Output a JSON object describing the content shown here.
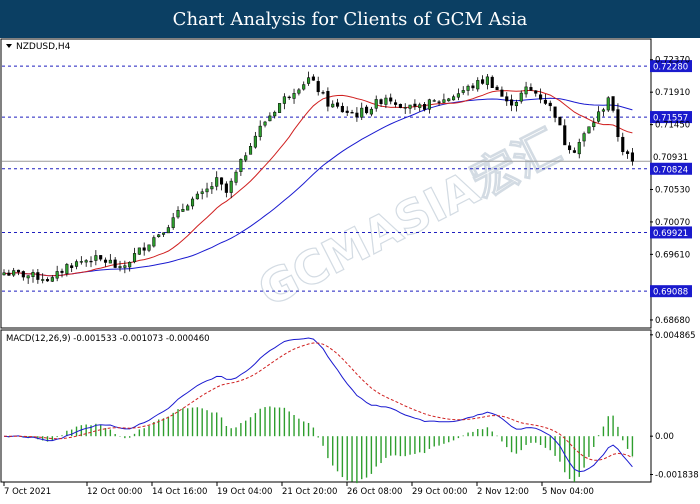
{
  "header": {
    "title": "Chart Analysis for Clients of GCM Asia"
  },
  "chart_data": {
    "type": "candlestick",
    "symbol": "NZDUSD,H4",
    "watermark": "GCMASIA宏汇",
    "price_axis": {
      "range": [
        0.6858,
        0.7265
      ],
      "tick_labels": [
        "0.72370",
        "0.71910",
        "0.71450",
        "0.70530",
        "0.70070",
        "0.69610",
        "0.68680"
      ],
      "ticks": [
        0.7237,
        0.7191,
        0.7145,
        0.7053,
        0.7007,
        0.6961,
        0.6868
      ]
    },
    "levels": [
      {
        "value": 0.7228,
        "label": "0.72280",
        "style": "dashed",
        "color": "#1f1fbf"
      },
      {
        "value": 0.71557,
        "label": "0.71557",
        "style": "dashed",
        "color": "#1f1fbf"
      },
      {
        "value": 0.70824,
        "label": "0.70824",
        "style": "dashed",
        "color": "#1f1fbf"
      },
      {
        "value": 0.69921,
        "label": "0.69921",
        "style": "dashed",
        "color": "#1f1fbf"
      },
      {
        "value": 0.69088,
        "label": "0.69088",
        "style": "dashed",
        "color": "#1f1fbf"
      }
    ],
    "current_price": {
      "value": 0.70931,
      "label": "0.70931"
    },
    "time_labels": [
      "7 Oct 2021",
      "12 Oct 00:00",
      "14 Oct 16:00",
      "19 Oct 04:00",
      "21 Oct 20:00",
      "26 Oct 08:00",
      "29 Oct 00:00",
      "2 Nov 12:00",
      "5 Nov 04:00"
    ],
    "close_path": [
      [
        0,
        0.6935
      ],
      [
        4,
        0.6932
      ],
      [
        8,
        0.6928
      ],
      [
        10,
        0.6925
      ],
      [
        13,
        0.6945
      ],
      [
        18,
        0.6955
      ],
      [
        22,
        0.695
      ],
      [
        24,
        0.6938
      ],
      [
        27,
        0.696
      ],
      [
        31,
        0.6985
      ],
      [
        35,
        0.701
      ],
      [
        38,
        0.7035
      ],
      [
        41,
        0.7045
      ],
      [
        44,
        0.7065
      ],
      [
        46,
        0.7048
      ],
      [
        48,
        0.7075
      ],
      [
        51,
        0.712
      ],
      [
        54,
        0.715
      ],
      [
        57,
        0.7175
      ],
      [
        60,
        0.7195
      ],
      [
        63,
        0.721
      ],
      [
        65,
        0.7195
      ],
      [
        67,
        0.7175
      ],
      [
        70,
        0.7165
      ],
      [
        73,
        0.716
      ],
      [
        76,
        0.717
      ],
      [
        79,
        0.7185
      ],
      [
        82,
        0.7175
      ],
      [
        85,
        0.7165
      ],
      [
        88,
        0.7175
      ],
      [
        91,
        0.718
      ],
      [
        94,
        0.719
      ],
      [
        97,
        0.72
      ],
      [
        100,
        0.721
      ],
      [
        102,
        0.7195
      ],
      [
        104,
        0.7175
      ],
      [
        106,
        0.718
      ],
      [
        108,
        0.7195
      ],
      [
        110,
        0.719
      ],
      [
        112,
        0.7178
      ],
      [
        114,
        0.716
      ],
      [
        116,
        0.712
      ],
      [
        118,
        0.711
      ],
      [
        120,
        0.713
      ],
      [
        122,
        0.715
      ],
      [
        124,
        0.717
      ],
      [
        125,
        0.7185
      ],
      [
        126,
        0.716
      ],
      [
        127,
        0.713
      ],
      [
        128,
        0.711
      ],
      [
        129,
        0.71
      ],
      [
        130,
        0.709
      ]
    ],
    "ma_fast_color": "#d02020",
    "ma_slow_color": "#1a1ad0",
    "macd": {
      "label": "MACD(12,26,9) -0.001533 -0.001073 -0.000460",
      "range": [
        -0.00215,
        0.005
      ],
      "tick_labels": [
        "0.004865",
        "0.00",
        "-0.001838"
      ],
      "ticks": [
        0.004865,
        0.0,
        -0.001838
      ],
      "main_color": "#1a1ad0",
      "signal_color": "#d02020",
      "hist_color": "#2e9e2e"
    }
  }
}
